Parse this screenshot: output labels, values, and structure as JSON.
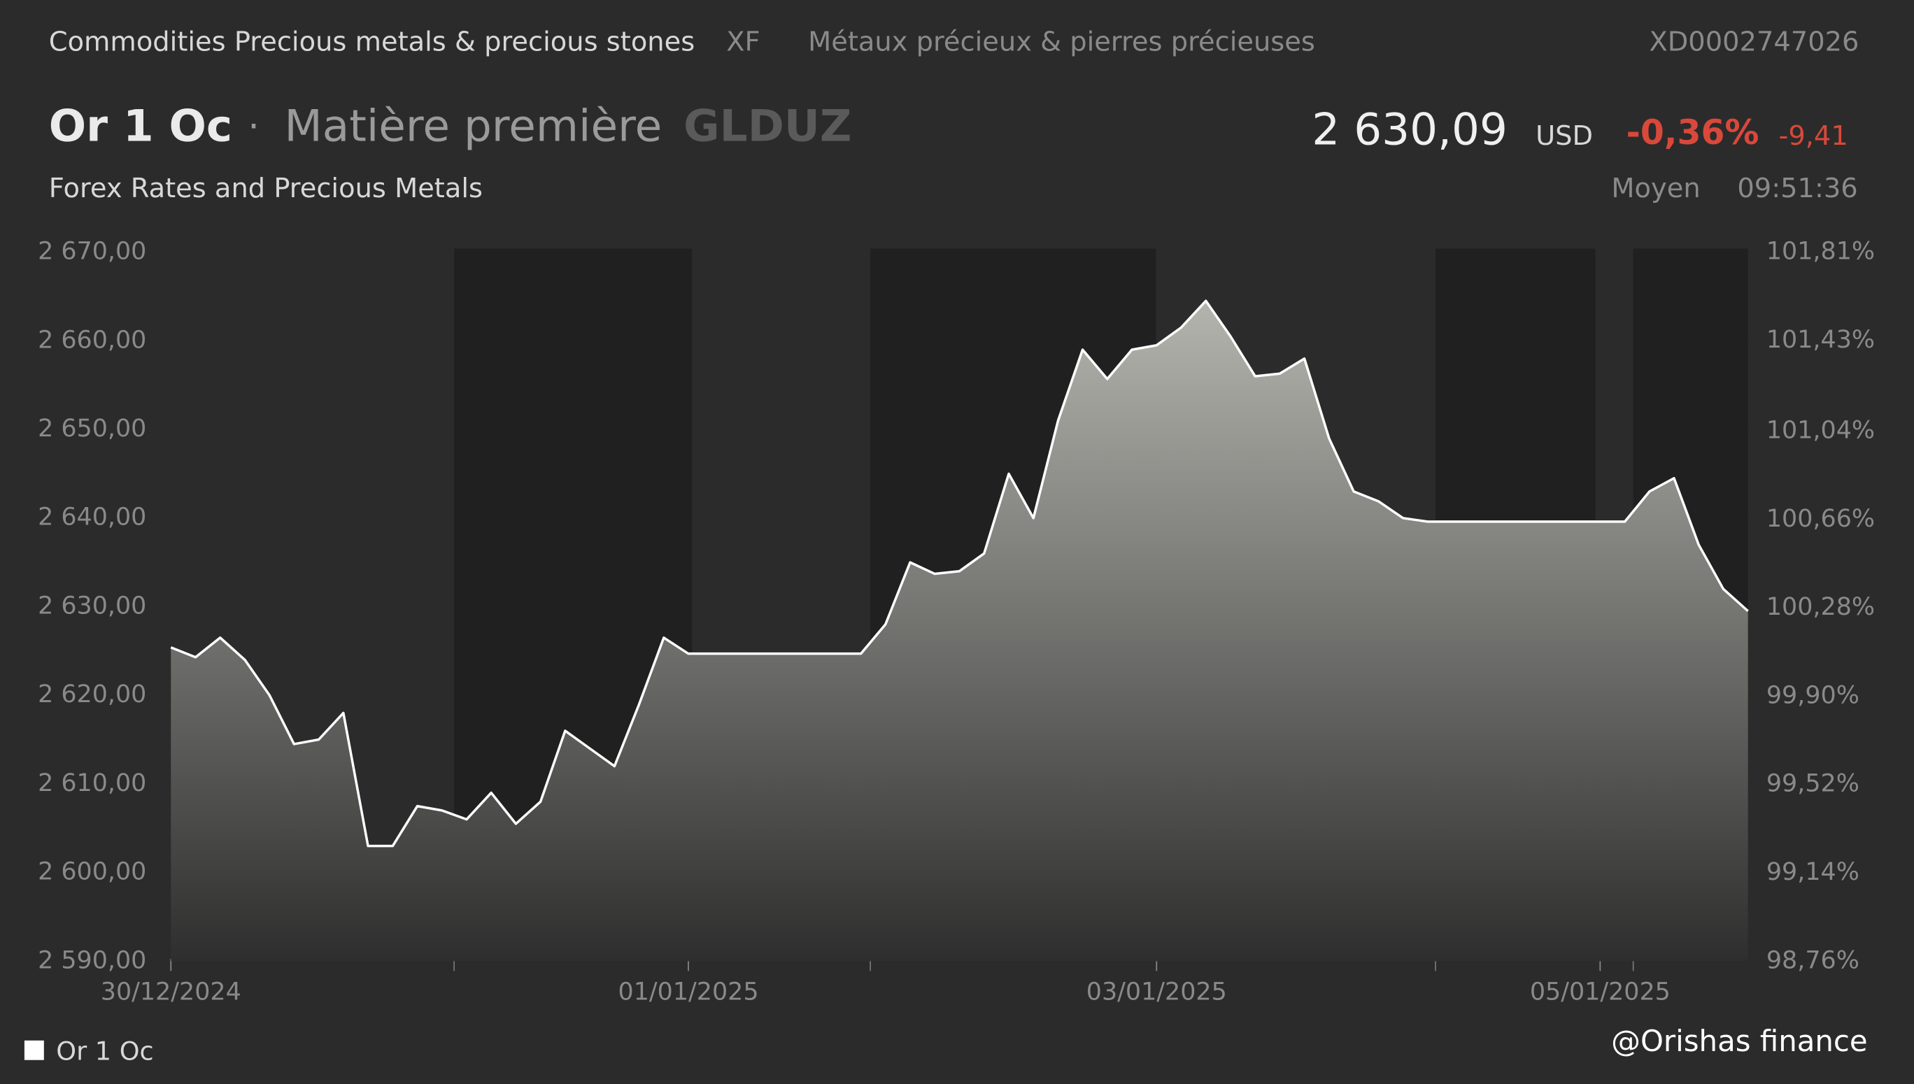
{
  "header": {
    "breadcrumb": "Commodities Precious metals & precious stones",
    "exchange": "XF",
    "breadcrumb_fr": "Métaux précieux & pierres précieuses",
    "isin": "XD0002747026",
    "name": "Or 1 Oc",
    "kind": "Matière première",
    "ticker": "GLDUZ",
    "price": "2 630,09",
    "currency": "USD",
    "change_pct": "-0,36%",
    "change": "-9,41",
    "source": "Forex Rates and Precious Metals",
    "price_type": "Moyen",
    "time": "09:51:36"
  },
  "watermark": "@Orishas finance",
  "chart_data": {
    "type": "area",
    "categories": [
      "30/12/2024",
      null,
      null,
      null,
      null,
      null,
      null,
      null,
      null,
      null,
      null,
      null,
      null,
      null,
      null,
      null,
      null,
      null,
      null,
      null,
      null,
      "01/01/2025",
      null,
      null,
      null,
      null,
      null,
      null,
      null,
      null,
      null,
      null,
      null,
      null,
      null,
      null,
      null,
      null,
      null,
      null,
      "03/01/2025",
      null,
      null,
      null,
      null,
      null,
      null,
      null,
      null,
      null,
      null,
      null,
      null,
      null,
      null,
      null,
      null,
      null,
      "05/01/2025",
      null,
      null,
      null,
      null,
      null,
      null
    ],
    "series": [
      {
        "name": "Or 1 Oc",
        "color": "#ffffff",
        "values": [
          2625.4,
          2624.3,
          2626.5,
          2624,
          2620,
          2614.5,
          2615,
          2618,
          2603,
          2603,
          2607.5,
          2607,
          2606,
          2609,
          2605.5,
          2608,
          2616,
          2614,
          2612,
          2619,
          2626.5,
          2624.7,
          2624.7,
          2624.7,
          2624.7,
          2624.7,
          2624.7,
          2624.7,
          2624.7,
          2628,
          2635,
          2633.7,
          2634,
          2636,
          2645,
          2640,
          2651,
          2659,
          2655.7,
          2659,
          2659.5,
          2661.5,
          2664.5,
          2660.5,
          2656,
          2656.3,
          2658,
          2649,
          2643,
          2641.9,
          2640,
          2639.6,
          2639.6,
          2639.6,
          2639.6,
          2639.6,
          2639.6,
          2639.6,
          2639.6,
          2639.6,
          2643,
          2644.5,
          2637,
          2632,
          2629.5
        ]
      }
    ],
    "ylim": [
      2590,
      2670
    ],
    "yticks": [
      {
        "value": 2590,
        "label": "2 590,00"
      },
      {
        "value": 2600,
        "label": "2 600,00"
      },
      {
        "value": 2610,
        "label": "2 610,00"
      },
      {
        "value": 2620,
        "label": "2 620,00"
      },
      {
        "value": 2630,
        "label": "2 630,00"
      },
      {
        "value": 2640,
        "label": "2 640,00"
      },
      {
        "value": 2650,
        "label": "2 650,00"
      },
      {
        "value": 2660,
        "label": "2 660,00"
      },
      {
        "value": 2670,
        "label": "2 670,00"
      }
    ],
    "y2lim": [
      98.76,
      101.81
    ],
    "y2ticks": [
      {
        "value": 98.76,
        "label": "98,76%"
      },
      {
        "value": 99.14,
        "label": "99,14%"
      },
      {
        "value": 99.52,
        "label": "99,52%"
      },
      {
        "value": 99.9,
        "label": "99,90%"
      },
      {
        "value": 100.28,
        "label": "100,28%"
      },
      {
        "value": 100.66,
        "label": "100,66%"
      },
      {
        "value": 101.04,
        "label": "101,04%"
      },
      {
        "value": 101.43,
        "label": "101,43%"
      },
      {
        "value": 101.81,
        "label": "101,81%"
      }
    ],
    "legend": "bottom-left"
  }
}
